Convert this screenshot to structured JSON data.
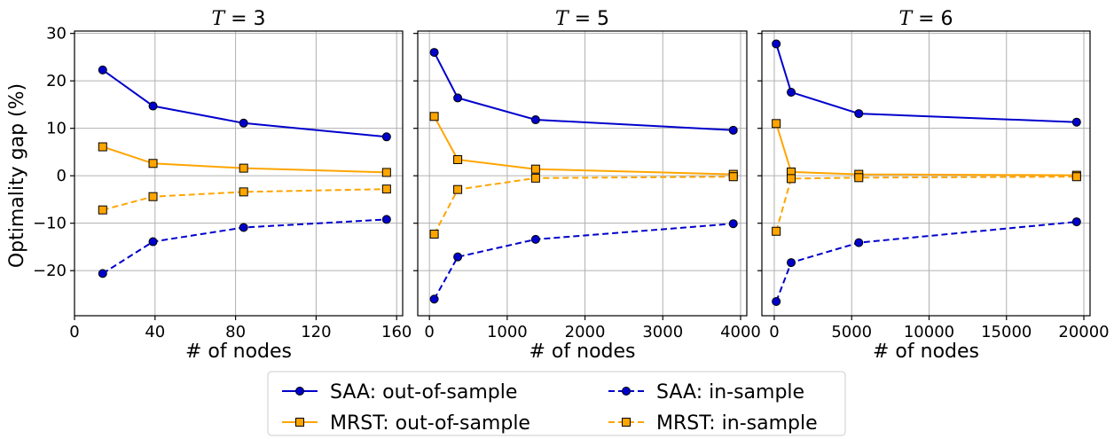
{
  "chart_data": {
    "type": "line",
    "ylabel": "Optimality gap (%)",
    "ylim": [
      -29.5,
      30.5
    ],
    "yticks": [
      -20,
      -10,
      0,
      10,
      20,
      30
    ],
    "ytick_labels": [
      "−20",
      "−10",
      "0",
      "10",
      "20",
      "30"
    ],
    "grid": true,
    "legend": {
      "placement": "bottom-center",
      "columns": 2,
      "entries": [
        {
          "label": "SAA: out-of-sample",
          "color": "#0000cc",
          "dash": "solid",
          "marker": "circle"
        },
        {
          "label": "SAA: in-sample",
          "color": "#0000cc",
          "dash": "dashed",
          "marker": "circle"
        },
        {
          "label": "MRST: out-of-sample",
          "color": "#ffa500",
          "dash": "solid",
          "marker": "square"
        },
        {
          "label": "MRST: in-sample",
          "color": "#ffa500",
          "dash": "dashed",
          "marker": "square"
        }
      ]
    },
    "panels": [
      {
        "title_var": "T",
        "title_rest": " = 3",
        "xlabel": "# of nodes",
        "xlim": [
          0,
          163
        ],
        "xticks": [
          0,
          40,
          80,
          120,
          160
        ],
        "xtick_labels": [
          "0",
          "40",
          "80",
          "120",
          "160"
        ],
        "series": [
          {
            "legend_index": 0,
            "x": [
              14,
              39,
              84,
              155
            ],
            "y": [
              22.3,
              14.7,
              11.1,
              8.2
            ]
          },
          {
            "legend_index": 2,
            "x": [
              14,
              39,
              84,
              155
            ],
            "y": [
              6.1,
              2.6,
              1.6,
              0.7
            ]
          },
          {
            "legend_index": 3,
            "x": [
              14,
              39,
              84,
              155
            ],
            "y": [
              -7.2,
              -4.4,
              -3.4,
              -2.8
            ]
          },
          {
            "legend_index": 1,
            "x": [
              14,
              39,
              84,
              155
            ],
            "y": [
              -20.6,
              -13.9,
              -10.9,
              -9.2
            ]
          }
        ]
      },
      {
        "title_var": "T",
        "title_rest": " = 5",
        "xlabel": "# of nodes",
        "xlim": [
          -150,
          4080
        ],
        "xticks": [
          0,
          1000,
          2000,
          3000,
          4000
        ],
        "xtick_labels": [
          "0",
          "1000",
          "2000",
          "3000",
          "4000"
        ],
        "series": [
          {
            "legend_index": 0,
            "x": [
              62,
              364,
              1365,
              3906
            ],
            "y": [
              26.0,
              16.4,
              11.8,
              9.6
            ]
          },
          {
            "legend_index": 2,
            "x": [
              62,
              364,
              1365,
              3906
            ],
            "y": [
              12.5,
              3.4,
              1.4,
              0.3
            ]
          },
          {
            "legend_index": 3,
            "x": [
              62,
              364,
              1365,
              3906
            ],
            "y": [
              -12.3,
              -2.9,
              -0.5,
              -0.2
            ]
          },
          {
            "legend_index": 1,
            "x": [
              62,
              364,
              1365,
              3906
            ],
            "y": [
              -26.0,
              -17.1,
              -13.4,
              -10.1
            ]
          }
        ]
      },
      {
        "title_var": "T",
        "title_rest": " = 6",
        "xlabel": "# of nodes",
        "xlim": [
          -800,
          20400
        ],
        "xticks": [
          0,
          5000,
          10000,
          15000,
          20000
        ],
        "xtick_labels": [
          "0",
          "5000",
          "10000",
          "15000",
          "20000"
        ],
        "series": [
          {
            "legend_index": 0,
            "x": [
              126,
              1092,
              5461,
              19531
            ],
            "y": [
              27.8,
              17.6,
              13.1,
              11.3
            ]
          },
          {
            "legend_index": 2,
            "x": [
              126,
              1092,
              5461,
              19531
            ],
            "y": [
              11.0,
              0.8,
              0.3,
              0.1
            ]
          },
          {
            "legend_index": 3,
            "x": [
              126,
              1092,
              5461,
              19531
            ],
            "y": [
              -11.7,
              -0.6,
              -0.4,
              -0.2
            ]
          },
          {
            "legend_index": 1,
            "x": [
              126,
              1092,
              5461,
              19531
            ],
            "y": [
              -26.5,
              -18.3,
              -14.1,
              -9.7
            ]
          }
        ]
      }
    ]
  }
}
